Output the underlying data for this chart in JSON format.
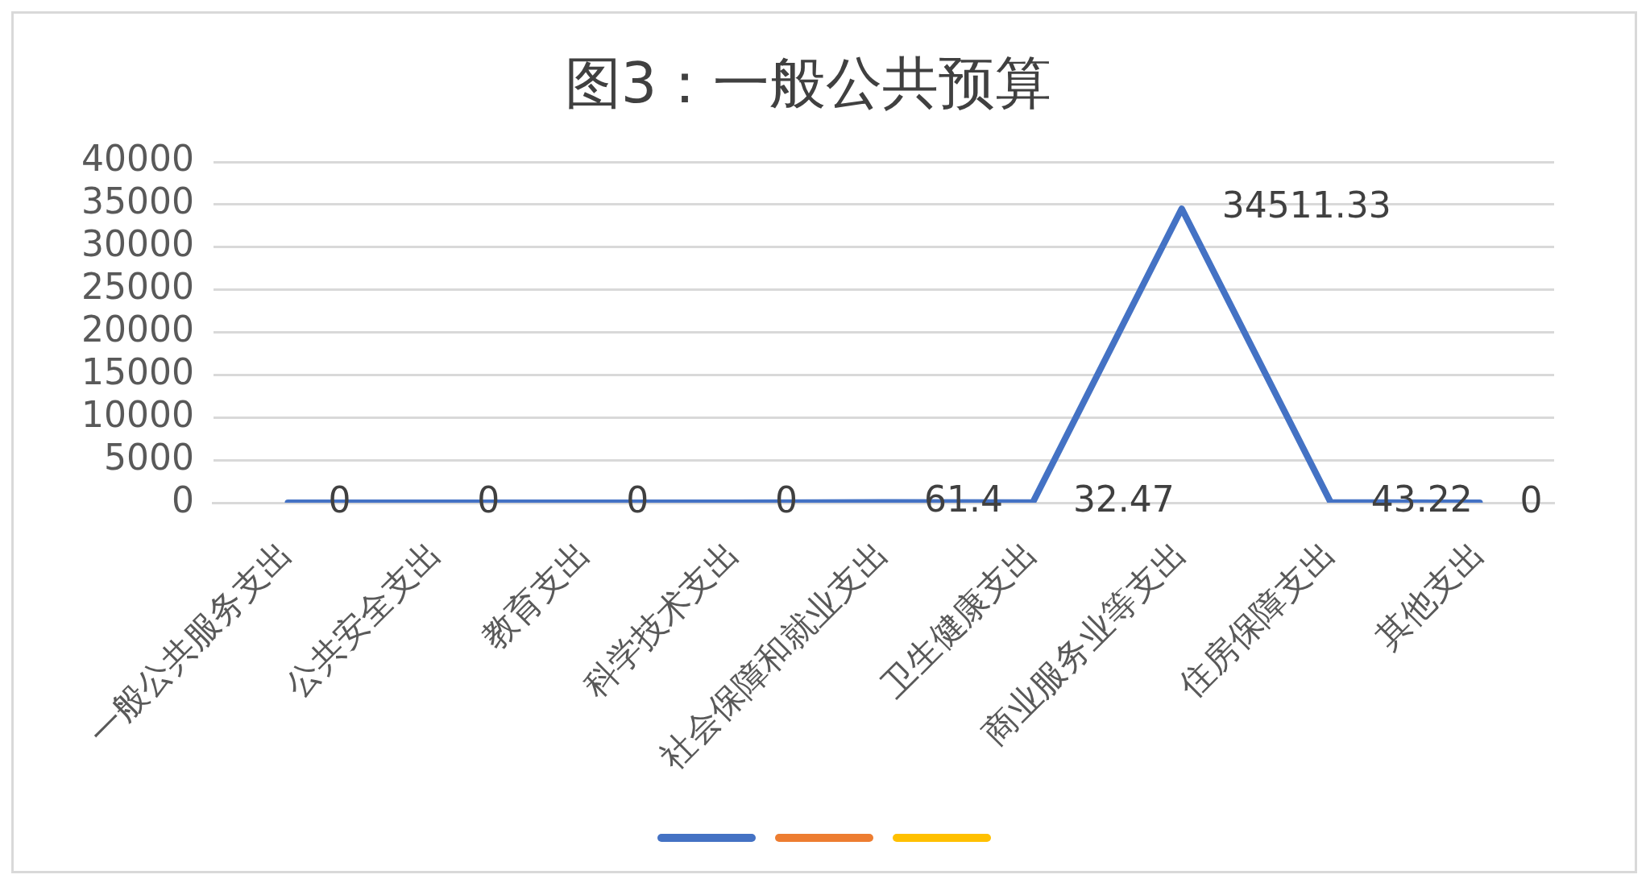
{
  "chart_data": {
    "type": "line",
    "title": "图3：一般公共预算",
    "categories": [
      "一般公共服务支出",
      "公共安全支出",
      "教育支出",
      "科学技术支出",
      "社会保障和就业支出",
      "卫生健康支出",
      "商业服务业等支出",
      "住房保障支出",
      "其他支出"
    ],
    "series": [
      {
        "color": "#4472c4",
        "values": [
          0,
          0,
          0,
          0,
          61.4,
          32.47,
          34511.33,
          43.22,
          0
        ]
      }
    ],
    "ylim": [
      0,
      40000
    ],
    "yticks": [
      0,
      5000,
      10000,
      15000,
      20000,
      25000,
      30000,
      35000,
      40000
    ],
    "grid": "y",
    "marker": "none",
    "line_style": "solid",
    "data_labels": true
  }
}
